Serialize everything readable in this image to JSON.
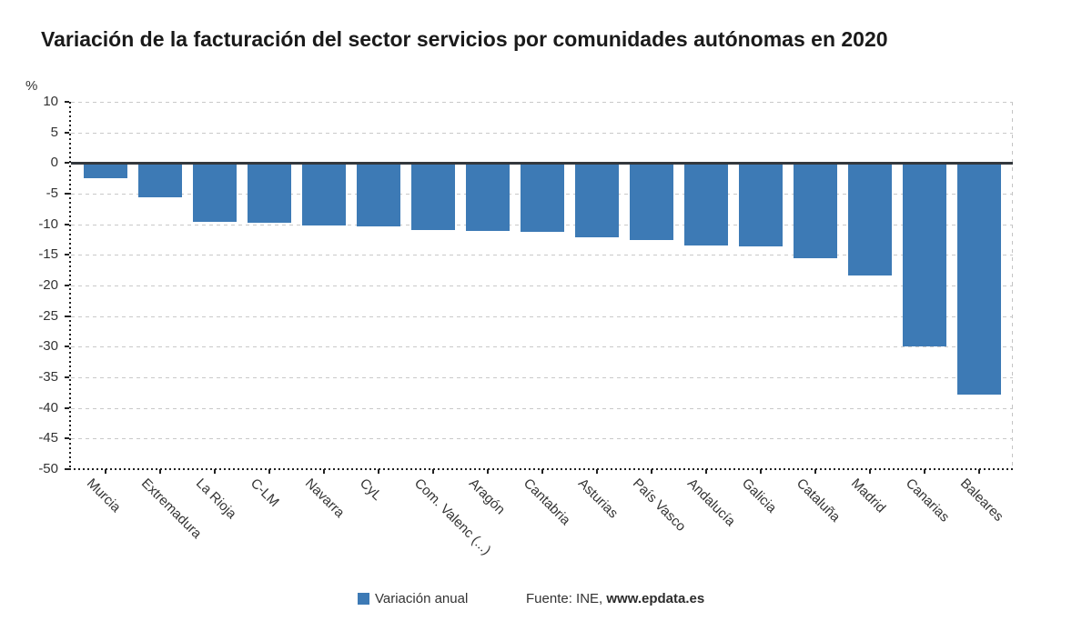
{
  "title": "Variación de la facturación del sector servicios por comunidades autónomas en 2020",
  "chart_data": {
    "type": "bar",
    "title": "Variación de la facturación del sector servicios por comunidades autónomas en 2020",
    "ylabel": "%",
    "xlabel": "",
    "ylim": [
      -50,
      10
    ],
    "yticks": [
      10,
      5,
      0,
      -5,
      -10,
      -15,
      -20,
      -25,
      -30,
      -35,
      -40,
      -45,
      -50
    ],
    "grid": true,
    "legend_position": "bottom",
    "series_name": "Variación anual",
    "categories": [
      "Murcia",
      "Extremadura",
      "La Rioja",
      "C-LM",
      "Navarra",
      "CyL",
      "Com. Valenc (...)",
      "Aragón",
      "Cantabria",
      "Asturias",
      "País Vasco",
      "Andalucía",
      "Galicia",
      "Cataluña",
      "Madrid",
      "Canarias",
      "Baleares"
    ],
    "values": [
      -2.5,
      -5.6,
      -9.6,
      -9.8,
      -10.2,
      -10.4,
      -10.9,
      -11.1,
      -11.3,
      -12.2,
      -12.6,
      -13.4,
      -13.6,
      -15.6,
      -18.3,
      -29.9,
      -37.8
    ]
  },
  "legend": {
    "label": "Variación anual",
    "swatch_color": "#3d7ab5"
  },
  "source": {
    "prefix": "Fuente: INE, ",
    "link_text": "www.epdata.es"
  },
  "colors": {
    "bar": "#3d7ab5",
    "grid": "#c9c9c9",
    "axis": "#222222",
    "zero_line": "#33383d",
    "text": "#333333",
    "title": "#1a1a1a"
  }
}
